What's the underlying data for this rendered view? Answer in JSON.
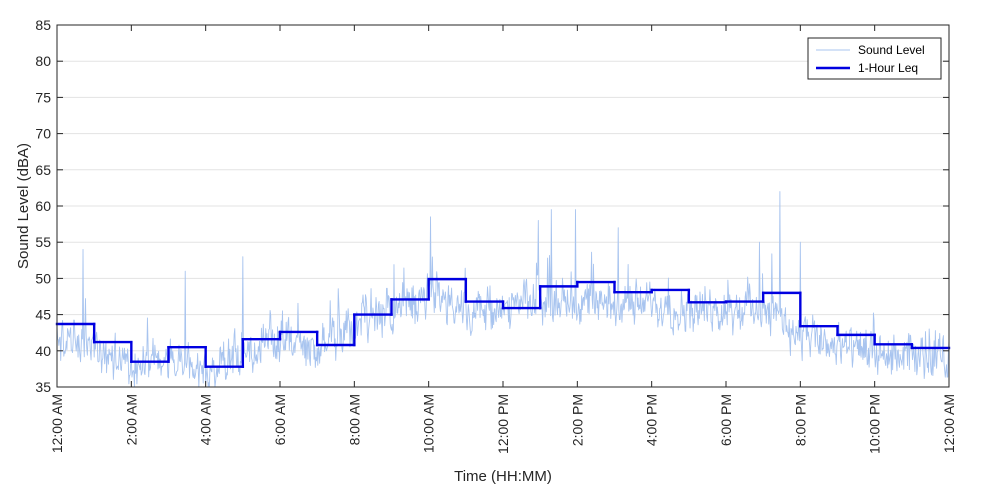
{
  "chart_data": {
    "type": "line",
    "title": "",
    "xlabel": "Time (HH:MM)",
    "ylabel": "Sound Level (dBA)",
    "xlim_hours": [
      0,
      24
    ],
    "ylim": [
      35,
      85
    ],
    "x_ticks": [
      0,
      2,
      4,
      6,
      8,
      10,
      12,
      14,
      16,
      18,
      20,
      22,
      24
    ],
    "x_tick_labels": [
      "12:00 AM",
      "2:00 AM",
      "4:00 AM",
      "6:00 AM",
      "8:00 AM",
      "10:00 AM",
      "12:00 PM",
      "2:00 PM",
      "4:00 PM",
      "6:00 PM",
      "8:00 PM",
      "10:00 PM",
      "12:00 AM"
    ],
    "y_ticks": [
      35,
      40,
      45,
      50,
      55,
      60,
      65,
      70,
      75,
      80,
      85
    ],
    "y_tick_labels": [
      "35",
      "40",
      "45",
      "50",
      "55",
      "60",
      "65",
      "70",
      "75",
      "80",
      "85"
    ],
    "grid": "horizontal",
    "legend": {
      "position": "top-right",
      "entries": [
        "Sound Level",
        "1-Hour Leq"
      ]
    },
    "colors": {
      "sound_level": "#a8c4ef",
      "leq": "#0000e0"
    },
    "series": [
      {
        "name": "Sound Level",
        "description_profile_hourly_mean": [
          41.5,
          40.5,
          38.0,
          38.5,
          36.5,
          40.0,
          41.5,
          40.0,
          43.5,
          45.5,
          47.5,
          46.0,
          45.0,
          47.0,
          47.0,
          46.5,
          46.5,
          45.5,
          45.5,
          46.0,
          42.0,
          40.5,
          39.5,
          39.0
        ],
        "notable_peaks": [
          {
            "hour": 0.7,
            "value": 54
          },
          {
            "hour": 3.45,
            "value": 51
          },
          {
            "hour": 5.0,
            "value": 53
          },
          {
            "hour": 10.05,
            "value": 58.5
          },
          {
            "hour": 12.95,
            "value": 58
          },
          {
            "hour": 13.3,
            "value": 59.5
          },
          {
            "hour": 13.95,
            "value": 59.5
          },
          {
            "hour": 15.1,
            "value": 57
          },
          {
            "hour": 18.9,
            "value": 55
          },
          {
            "hour": 19.45,
            "value": 62
          },
          {
            "hour": 20.0,
            "value": 55
          }
        ]
      },
      {
        "name": "1-Hour Leq",
        "x": [
          0,
          1,
          2,
          3,
          4,
          5,
          6,
          7,
          8,
          9,
          10,
          11,
          12,
          13,
          14,
          15,
          16,
          17,
          18,
          19,
          20,
          21,
          22,
          23
        ],
        "values": [
          43.7,
          41.2,
          38.5,
          40.5,
          37.8,
          41.6,
          42.6,
          40.8,
          45.0,
          47.1,
          49.9,
          46.8,
          45.9,
          48.9,
          49.5,
          48.1,
          48.4,
          46.7,
          46.8,
          48.0,
          43.4,
          42.2,
          40.9,
          40.4
        ]
      }
    ]
  }
}
